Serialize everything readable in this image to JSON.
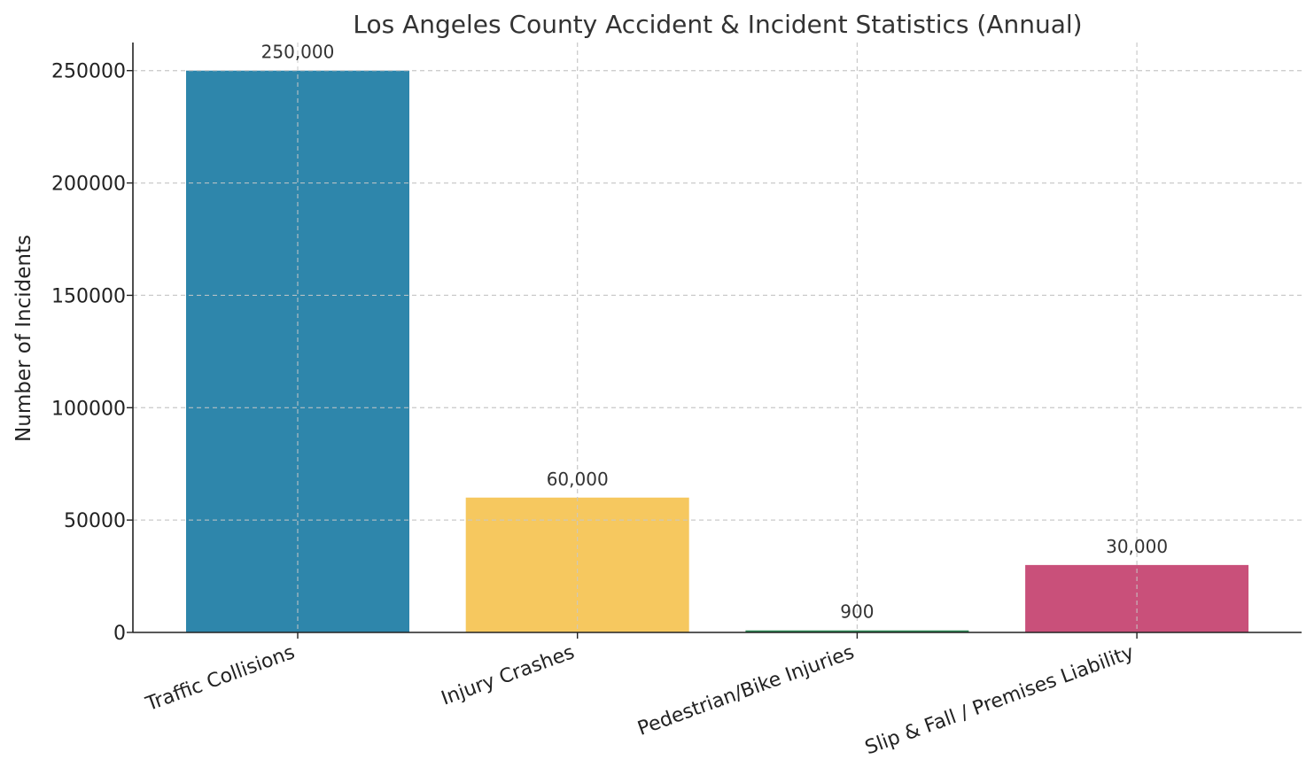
{
  "chart_data": {
    "type": "bar",
    "title": "Los Angeles County Accident & Incident Statistics (Annual)",
    "xlabel": "",
    "ylabel": "Number of Incidents",
    "categories": [
      "Traffic Collisions",
      "Injury Crashes",
      "Pedestrian/Bike Injuries",
      "Slip & Fall / Premises Liability"
    ],
    "values": [
      250000,
      60000,
      900,
      30000
    ],
    "value_labels": [
      "250,000",
      "60,000",
      "900",
      "30,000"
    ],
    "colors": [
      "#2e86ab",
      "#f6c85f",
      "#2e8b57",
      "#c9507a"
    ],
    "yticks": [
      0,
      50000,
      100000,
      150000,
      200000,
      250000
    ],
    "ytick_labels": [
      "0",
      "50000",
      "100000",
      "150000",
      "200000",
      "250000"
    ],
    "ylim": [
      0,
      262500
    ],
    "grid": true,
    "legend": "none"
  }
}
